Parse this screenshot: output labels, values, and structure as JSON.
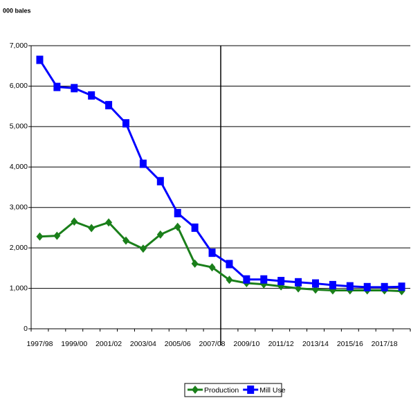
{
  "chart_data": {
    "type": "line",
    "y_label": "000 bales",
    "categories": [
      "1997/98",
      null,
      "1999/00",
      null,
      "2001/02",
      null,
      "2003/04",
      null,
      "2005/06",
      null,
      "2007/08",
      null,
      "2009/10",
      null,
      "2011/12",
      null,
      "2013/14",
      null,
      "2015/16",
      null,
      "2017/18",
      null
    ],
    "series": [
      {
        "name": "Production",
        "color": "#1a7f1a",
        "marker": "diamond",
        "values": [
          2280,
          2300,
          2650,
          2490,
          2630,
          2180,
          1980,
          2330,
          2520,
          1610,
          1520,
          1210,
          1130,
          1100,
          1050,
          1000,
          970,
          950,
          950,
          950,
          950,
          930
        ]
      },
      {
        "name": "Mill Use",
        "color": "#0000ff",
        "marker": "square",
        "values": [
          6650,
          5980,
          5950,
          5770,
          5530,
          5080,
          4080,
          3650,
          2860,
          2500,
          1880,
          1600,
          1220,
          1220,
          1180,
          1150,
          1120,
          1080,
          1050,
          1030,
          1030,
          1040
        ]
      }
    ],
    "ylim": [
      0,
      7000
    ],
    "yticks": [
      0,
      {
        "value": 1000,
        "label": "1,000"
      },
      {
        "value": 2000,
        "label": "2,000"
      },
      {
        "value": 3000,
        "label": "3,000"
      },
      {
        "value": 4000,
        "label": "4,000"
      },
      {
        "value": 5000,
        "label": "5,000"
      },
      {
        "value": 6000,
        "label": "6,000"
      },
      {
        "value": 7000,
        "label": "7,000"
      }
    ],
    "grid": true,
    "legend": "bottom"
  }
}
